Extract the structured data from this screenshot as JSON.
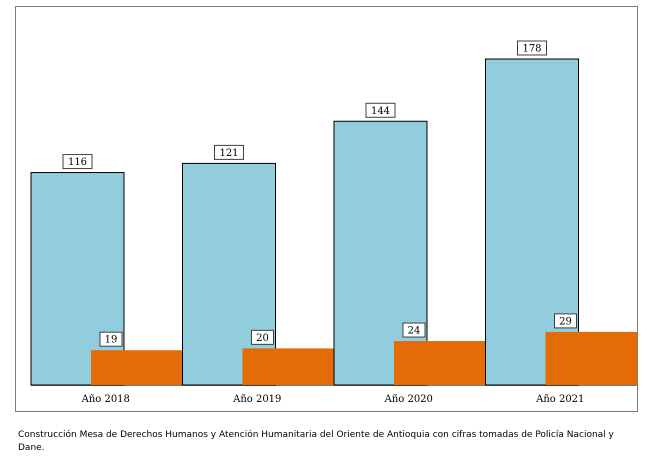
{
  "chart_data": {
    "type": "bar",
    "categories": [
      "Año 2018",
      "Año 2019",
      "Año 2020",
      "Año 2021"
    ],
    "series": [
      {
        "values": [
          116,
          121,
          144,
          178
        ],
        "color": "#92cddd"
      },
      {
        "values": [
          19,
          20,
          24,
          29
        ],
        "color": "#e36c09"
      }
    ],
    "ylim": [
      0,
      178
    ],
    "grid": false,
    "title": "",
    "xlabel": "",
    "ylabel": ""
  },
  "source_note": "Construcción Mesa de Derechos Humanos y Atención Humanitaria del Oriente de Antioquia con cifras tomadas de Policía Nacional y Dane."
}
